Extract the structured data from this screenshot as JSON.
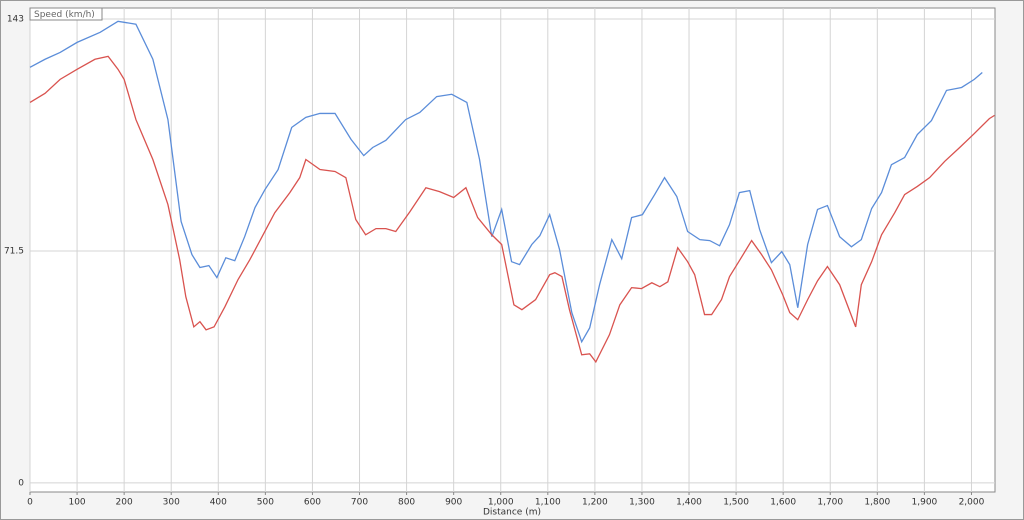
{
  "chart_data": {
    "type": "line",
    "y_label": "Speed (km/h)",
    "x_label": "Distance (m)",
    "xlim": [
      0,
      2050
    ],
    "ylim": [
      -2.8,
      146.4
    ],
    "xticks": [
      0,
      100,
      200,
      300,
      400,
      500,
      600,
      700,
      800,
      900,
      {
        "value": 1000,
        "label": "1,000"
      },
      {
        "value": 1100,
        "label": "1,100"
      },
      {
        "value": 1200,
        "label": "1,200"
      },
      {
        "value": 1300,
        "label": "1,300"
      },
      {
        "value": 1400,
        "label": "1,400"
      },
      {
        "value": 1500,
        "label": "1,500"
      },
      {
        "value": 1600,
        "label": "1,600"
      },
      {
        "value": 1700,
        "label": "1,700"
      },
      {
        "value": 1800,
        "label": "1,800"
      },
      {
        "value": 1900,
        "label": "1,900"
      },
      {
        "value": 2000,
        "label": "2,000"
      }
    ],
    "yticks": [
      0,
      71.5,
      143
    ],
    "grid": true,
    "series": [
      {
        "color": "#5b8dd9",
        "x": [
          0,
          32,
          64,
          100,
          149,
          187,
          225,
          261,
          293,
          321,
          344,
          361,
          380,
          397,
          416,
          435,
          456,
          478,
          499,
          527,
          556,
          586,
          616,
          648,
          682,
          709,
          728,
          756,
          798,
          828,
          864,
          896,
          928,
          955,
          981,
          1002,
          1023,
          1040,
          1066,
          1083,
          1104,
          1125,
          1151,
          1172,
          1189,
          1210,
          1236,
          1257,
          1278,
          1301,
          1327,
          1348,
          1374,
          1397,
          1423,
          1444,
          1465,
          1486,
          1507,
          1529,
          1550,
          1575,
          1597,
          1614,
          1631,
          1652,
          1673,
          1694,
          1720,
          1745,
          1766,
          1788,
          1809,
          1830,
          1858,
          1885,
          1915,
          1947,
          1979,
          2006,
          2023
        ],
        "values": [
          128.1,
          130.6,
          132.7,
          135.8,
          138.9,
          142.3,
          141.4,
          130.6,
          112.0,
          80.6,
          70.4,
          66.4,
          67.0,
          63.3,
          69.4,
          68.5,
          75.9,
          84.9,
          90.4,
          96.6,
          109.6,
          112.7,
          113.9,
          113.9,
          105.9,
          100.9,
          103.4,
          105.6,
          112.0,
          114.2,
          119.1,
          119.8,
          117.3,
          99.7,
          75.9,
          84.3,
          68.2,
          67.3,
          73.5,
          76.2,
          82.7,
          71.9,
          52.5,
          43.5,
          47.8,
          61.1,
          75.0,
          69.1,
          81.8,
          82.7,
          88.9,
          94.1,
          88.3,
          77.5,
          75.0,
          74.7,
          73.1,
          79.6,
          89.5,
          90.1,
          78.1,
          67.9,
          71.3,
          67.3,
          54.0,
          73.5,
          84.3,
          85.5,
          75.9,
          72.8,
          75.0,
          84.6,
          89.5,
          98.1,
          100.3,
          107.4,
          111.7,
          121.0,
          121.9,
          124.4,
          126.5
        ]
      },
      {
        "color": "#d9534f",
        "x": [
          0,
          32,
          64,
          100,
          138,
          166,
          187,
          200,
          225,
          261,
          293,
          318,
          331,
          348,
          361,
          374,
          391,
          414,
          442,
          467,
          493,
          520,
          552,
          573,
          586,
          616,
          648,
          671,
          692,
          713,
          735,
          756,
          777,
          807,
          841,
          870,
          900,
          926,
          951,
          981,
          1002,
          1028,
          1045,
          1074,
          1104,
          1115,
          1130,
          1146,
          1172,
          1189,
          1202,
          1231,
          1253,
          1278,
          1299,
          1321,
          1338,
          1355,
          1376,
          1397,
          1412,
          1433,
          1448,
          1469,
          1486,
          1507,
          1533,
          1554,
          1575,
          1599,
          1614,
          1631,
          1652,
          1673,
          1694,
          1720,
          1754,
          1766,
          1788,
          1809,
          1837,
          1858,
          1885,
          1911,
          1943,
          1975,
          2006,
          2038,
          2049
        ],
        "values": [
          117.3,
          120.1,
          124.4,
          127.5,
          130.6,
          131.5,
          127.5,
          124.4,
          112.0,
          99.7,
          85.8,
          68.8,
          57.4,
          48.1,
          49.7,
          47.2,
          48.1,
          54.3,
          62.7,
          68.8,
          75.9,
          83.3,
          89.5,
          94.1,
          99.7,
          96.6,
          96.0,
          94.1,
          81.2,
          76.5,
          78.4,
          78.4,
          77.5,
          83.6,
          91.0,
          89.8,
          88.0,
          91.0,
          81.8,
          76.5,
          73.5,
          54.9,
          53.4,
          56.5,
          64.2,
          64.8,
          63.6,
          53.4,
          39.5,
          39.8,
          37.3,
          45.7,
          54.9,
          60.2,
          59.9,
          61.7,
          60.5,
          62.0,
          72.5,
          68.2,
          64.2,
          51.9,
          51.9,
          56.5,
          63.6,
          68.5,
          74.7,
          70.4,
          65.7,
          58.0,
          52.5,
          50.3,
          56.5,
          62.3,
          66.7,
          61.1,
          48.1,
          61.1,
          68.2,
          76.5,
          83.3,
          88.9,
          91.4,
          94.1,
          99.1,
          103.4,
          107.7,
          112.3,
          113.3
        ]
      }
    ]
  }
}
